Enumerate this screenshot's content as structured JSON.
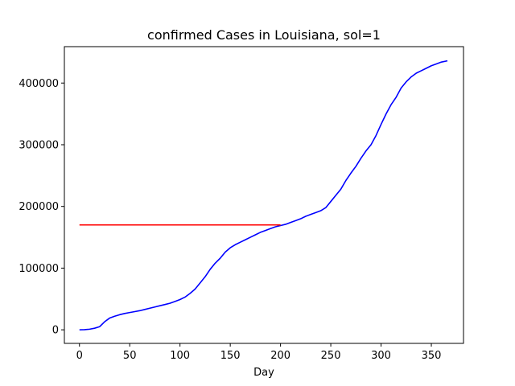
{
  "chart_data": {
    "type": "line",
    "title": "confirmed Cases in Louisiana, sol=1",
    "xlabel": "Day",
    "ylabel": "",
    "xlim": [
      -15,
      382
    ],
    "ylim": [
      -22000,
      459000
    ],
    "xticks": [
      0,
      50,
      100,
      150,
      200,
      250,
      300,
      350
    ],
    "yticks": [
      0,
      100000,
      200000,
      300000,
      400000
    ],
    "grid": false,
    "series": [
      {
        "color": "#0000ff",
        "x": [
          0,
          5,
          10,
          15,
          20,
          25,
          30,
          35,
          40,
          45,
          50,
          55,
          60,
          65,
          70,
          75,
          80,
          85,
          90,
          95,
          100,
          105,
          110,
          115,
          120,
          125,
          130,
          135,
          140,
          145,
          150,
          155,
          160,
          165,
          170,
          175,
          180,
          185,
          190,
          195,
          200,
          205,
          210,
          215,
          220,
          225,
          230,
          235,
          240,
          245,
          250,
          255,
          260,
          265,
          270,
          275,
          280,
          285,
          290,
          295,
          300,
          305,
          310,
          315,
          320,
          325,
          330,
          335,
          340,
          345,
          350,
          355,
          360,
          366
        ],
        "values": [
          0,
          200,
          1000,
          2500,
          5000,
          13000,
          19000,
          22000,
          24500,
          26500,
          28000,
          29500,
          31000,
          33000,
          35000,
          37000,
          39000,
          41000,
          43000,
          46000,
          49000,
          53000,
          59000,
          66000,
          76000,
          86000,
          98000,
          108000,
          116000,
          126000,
          133000,
          138000,
          142000,
          146000,
          150000,
          154000,
          158000,
          161000,
          164000,
          167000,
          169000,
          171000,
          174000,
          177000,
          180000,
          184000,
          187000,
          190000,
          193000,
          198000,
          208000,
          218000,
          228000,
          242000,
          254000,
          265000,
          278000,
          290000,
          300000,
          315000,
          333000,
          350000,
          365000,
          377000,
          392000,
          402000,
          410000,
          416000,
          420000,
          424000,
          428000,
          431000,
          434000,
          436000
        ]
      },
      {
        "color": "#ff0000",
        "x": [
          0,
          200
        ],
        "values": [
          170000,
          170000
        ]
      }
    ]
  }
}
